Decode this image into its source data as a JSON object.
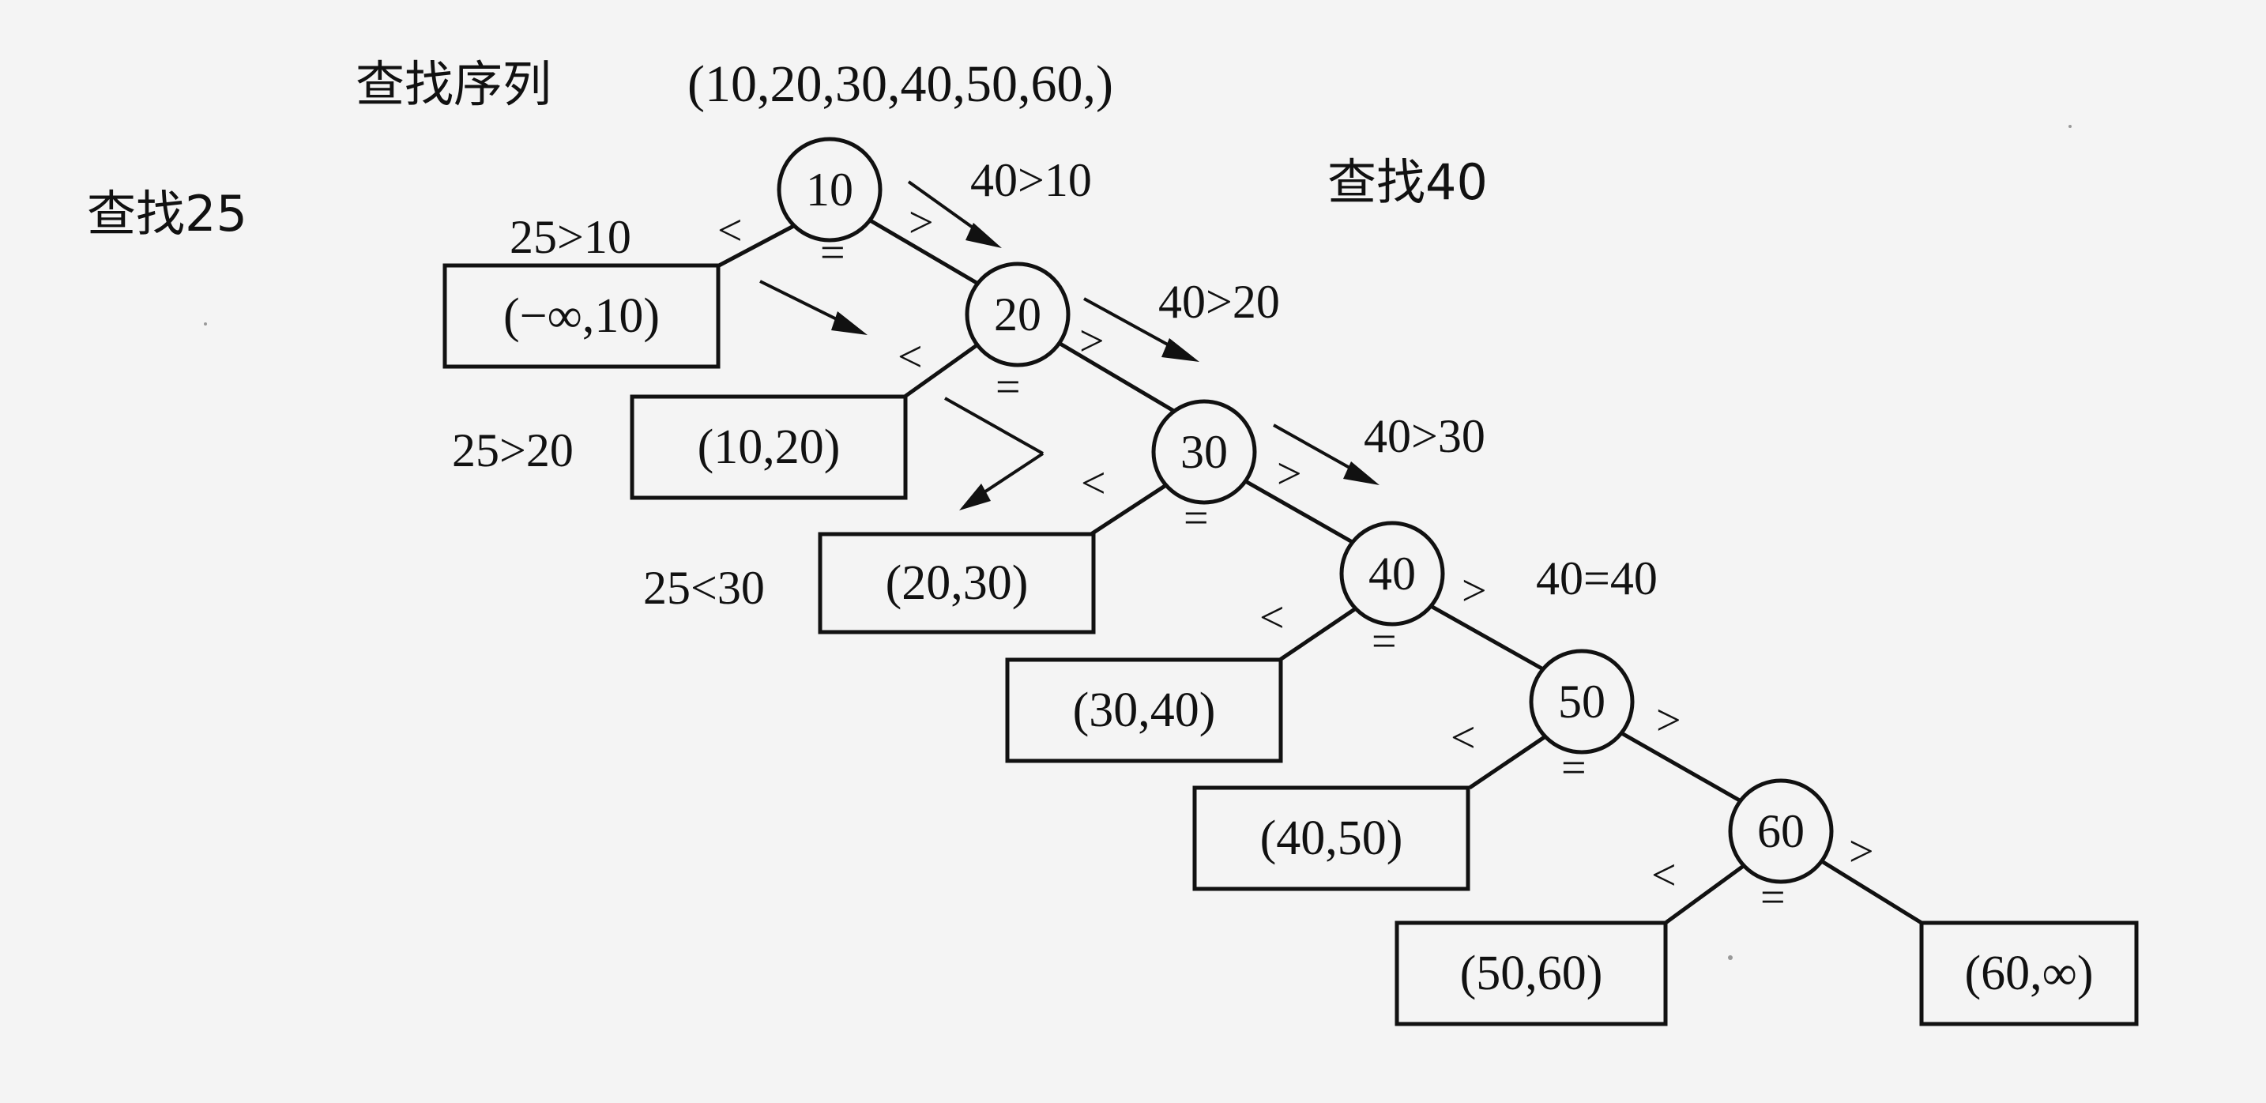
{
  "labels": {
    "sequence_title": "查找序列",
    "sequence": "(10,20,30,40,50,60,)",
    "search_25": "查找25",
    "search_40": "查找40"
  },
  "tree": {
    "nodes": [
      "10",
      "20",
      "30",
      "40",
      "50",
      "60"
    ],
    "leaves": [
      "(−∞,10)",
      "(10,20)",
      "(20,30)",
      "(30,40)",
      "(40,50)",
      "(50,60)",
      "(60,∞)"
    ],
    "symbols": {
      "less": "<",
      "greater": ">",
      "equal": "="
    }
  },
  "comparisons": {
    "search_25": [
      "25>10",
      "25>20",
      "25<30"
    ],
    "search_40": [
      "40>10",
      "40>20",
      "40>30",
      "40=40"
    ]
  }
}
